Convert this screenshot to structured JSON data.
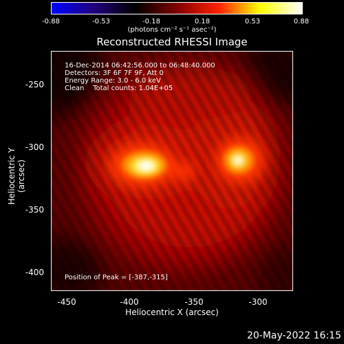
{
  "colorbar": {
    "ticks": [
      "-0.88",
      "-0.53",
      "-0.18",
      "0.18",
      "0.53",
      "0.88"
    ],
    "label": "(photons cm⁻² s⁻¹ asec⁻²)",
    "colors": [
      "#0000ff",
      "#200080",
      "#000000",
      "#800000",
      "#ff2000",
      "#ffff00",
      "#ffffff"
    ]
  },
  "title": "Reconstructed RHESSI Image",
  "info": {
    "line1": "16-Dec-2014 06:42:56.000 to 06:48:40.000",
    "line2": "Detectors: 3F 6F 7F 9F, Att 0",
    "line3": "Energy Range: 3.0 - 6.0 keV",
    "line4": "Clean    Total counts: 1.04E+05",
    "peak": "Position of Peak = [-387,-315]"
  },
  "axes": {
    "xlabel": "Heliocentric X (arcsec)",
    "ylabel": "Heliocentric Y (arcsec)",
    "xticks": [
      "-450",
      "-400",
      "-350",
      "-300"
    ],
    "yticks": [
      "-250",
      "-300",
      "-350",
      "-400"
    ]
  },
  "datestamp": "20-May-2022 16:15"
}
